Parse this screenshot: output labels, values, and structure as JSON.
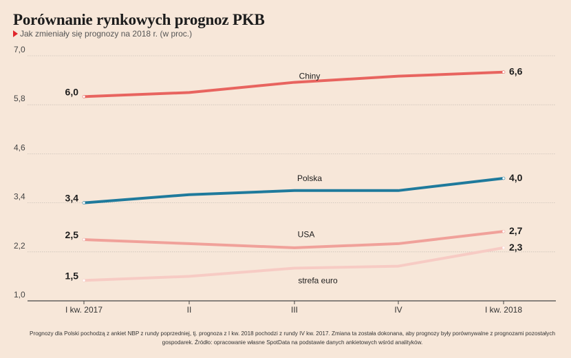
{
  "header": {
    "title": "Porównanie rynkowych prognoz PKB",
    "subtitle": "Jak zmieniały się prognozy na 2018 r. (w proc.)"
  },
  "footnote": "Prognozy dla Polski pochodzą z ankiet NBP z rundy poprzedniej, tj. prognoza z I kw. 2018 pochodzi z rundy IV kw. 2017. Zmiana ta została dokonana, aby prognozy były porównywalne z prognozami pozostałych gospodarek. Źródło: opracowanie własne SpotData na podstawie danych ankietowych wśród analityków.",
  "chart_data": {
    "type": "line",
    "categories": [
      "I kw. 2017",
      "II",
      "III",
      "IV",
      "I kw. 2018"
    ],
    "ylim": [
      1.0,
      7.0
    ],
    "yticks": [
      "7,0",
      "5,8",
      "4,6",
      "3,4",
      "2,2",
      "1,0"
    ],
    "ytick_values": [
      7.0,
      5.8,
      4.6,
      3.4,
      2.2,
      1.0
    ],
    "grid": true,
    "series": [
      {
        "name": "Chiny",
        "values": [
          6.0,
          6.1,
          6.35,
          6.5,
          6.6
        ],
        "start_label": "6,0",
        "end_label": "6,6",
        "color": "#e8645f"
      },
      {
        "name": "Polska",
        "values": [
          3.4,
          3.6,
          3.7,
          3.7,
          4.0
        ],
        "start_label": "3,4",
        "end_label": "4,0",
        "color": "#1f7a9c"
      },
      {
        "name": "USA",
        "values": [
          2.5,
          2.4,
          2.3,
          2.4,
          2.7
        ],
        "start_label": "2,5",
        "end_label": "2,7",
        "color": "#f0a19a"
      },
      {
        "name": "strefa euro",
        "values": [
          1.5,
          1.6,
          1.8,
          1.85,
          2.3
        ],
        "start_label": "1,5",
        "end_label": "2,3",
        "color": "#f7cbc4"
      }
    ]
  }
}
